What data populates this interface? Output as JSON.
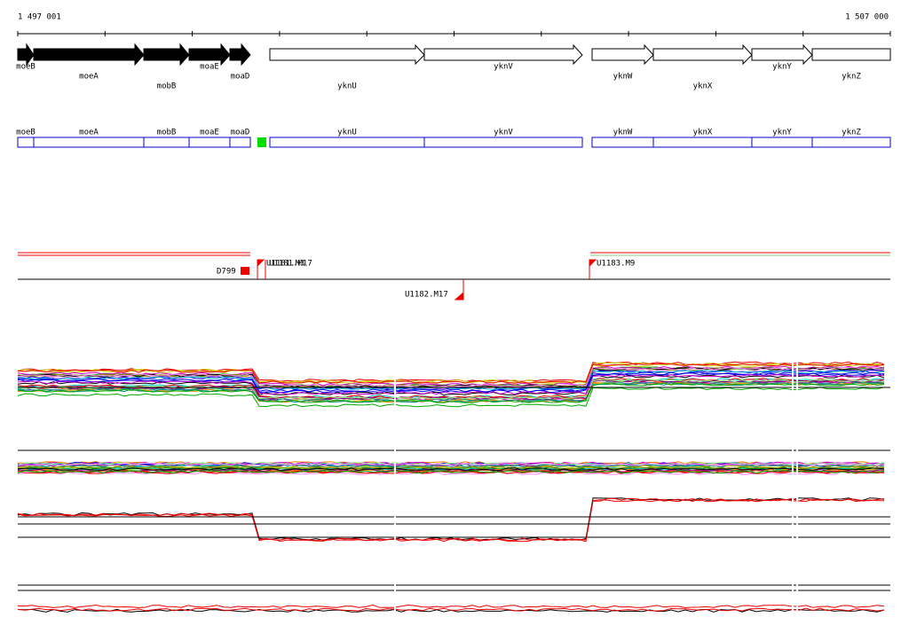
{
  "axis": {
    "start": "1 497 001",
    "end": "1 507 000"
  },
  "genes": [
    "moeB",
    "moeA",
    "mobB",
    "moaE",
    "moaD",
    "yknU",
    "yknV",
    "yknW",
    "yknX",
    "yknY",
    "yknZ"
  ],
  "segments": [
    "moeB",
    "moeA",
    "mobB",
    "moaE",
    "moaD",
    "yknU",
    "yknV",
    "yknW",
    "yknX",
    "yknY",
    "yknZ"
  ],
  "markers": [
    "D799",
    "U1181.M3",
    "U1181.M17",
    "U1183.M9",
    "U1182.M17"
  ]
}
